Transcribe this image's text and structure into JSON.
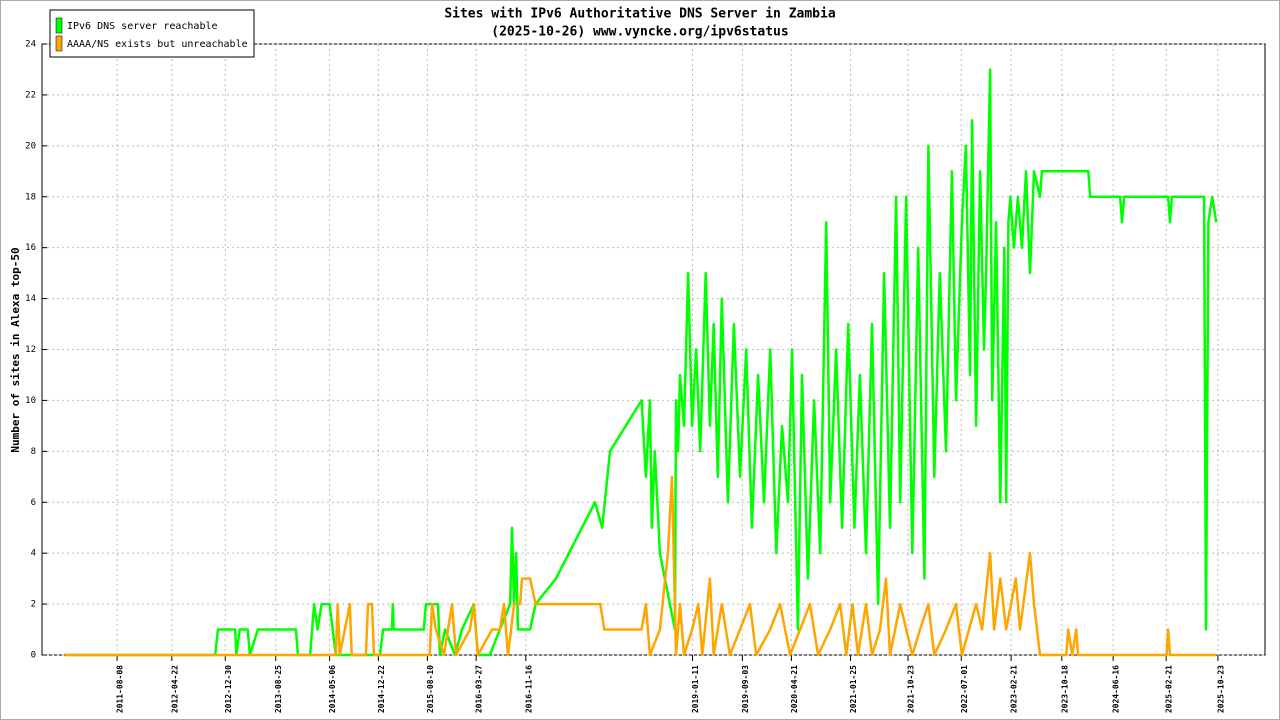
{
  "chart_data": {
    "type": "line",
    "title": "Sites with IPv6 Authoritative DNS Server in Zambia",
    "subtitle": "(2025-10-26) www.vyncke.org/ipv6status",
    "y_label": "Number of sites in Alexa top-50",
    "xlim": [
      "2010-08-19",
      "2026-06-02"
    ],
    "xticks": [
      "2011-08-08",
      "2012-04-22",
      "2012-12-30",
      "2013-08-25",
      "2014-05-06",
      "2014-12-22",
      "2015-08-10",
      "2016-03-27",
      "2016-11-16",
      "2019-01-11",
      "2019-09-03",
      "2020-04-21",
      "2021-01-25",
      "2021-10-23",
      "2022-07-01",
      "2023-02-21",
      "2023-10-18",
      "2024-06-16",
      "2025-02-21",
      "2025-10-23"
    ],
    "ylim": [
      0,
      24
    ],
    "yticks": [
      0,
      2,
      4,
      6,
      8,
      10,
      12,
      14,
      16,
      18,
      20,
      22,
      24
    ],
    "grid": true,
    "legend": "top-left",
    "series": [
      {
        "name": "IPv6 DNS server reachable",
        "color": "#00ff00",
        "x": [
          "2010-12-05",
          "2012-11-12",
          "2012-11-26",
          "2013-02-15",
          "2013-02-20",
          "2013-03-08",
          "2013-04-15",
          "2013-04-25",
          "2013-06-02",
          "2013-11-28",
          "2013-12-08",
          "2014-02-03",
          "2014-02-22",
          "2014-03-10",
          "2014-03-29",
          "2014-05-06",
          "2014-06-04",
          "2014-12-29",
          "2015-01-13",
          "2015-02-24",
          "2015-02-28",
          "2015-03-04",
          "2015-07-24",
          "2015-08-03",
          "2015-09-29",
          "2015-10-08",
          "2015-11-01",
          "2015-12-18",
          "2016-01-20",
          "2016-03-16",
          "2016-04-04",
          "2016-05-30",
          "2016-07-17",
          "2016-09-03",
          "2016-09-12",
          "2016-09-22",
          "2016-10-01",
          "2016-10-10",
          "2016-12-06",
          "2017-01-01",
          "2017-04-07",
          "2017-10-08",
          "2017-11-11",
          "2017-12-18",
          "2018-05-16",
          "2018-06-05",
          "2018-06-24",
          "2018-07-03",
          "2018-07-17",
          "2018-08-10",
          "2018-10-20",
          "2018-10-25",
          "2018-11-04",
          "2018-11-13",
          "2018-12-02",
          "2018-12-21",
          "2019-01-09",
          "2019-01-28",
          "2019-02-16",
          "2019-03-14",
          "2019-04-03",
          "2019-04-21",
          "2019-05-10",
          "2019-05-29",
          "2019-06-27",
          "2019-07-25",
          "2019-08-23",
          "2019-09-21",
          "2019-10-18",
          "2019-11-16",
          "2019-12-14",
          "2020-01-12",
          "2020-02-10",
          "2020-03-08",
          "2020-04-05",
          "2020-04-24",
          "2020-05-22",
          "2020-06-10",
          "2020-07-08",
          "2020-08-06",
          "2020-09-04",
          "2020-10-02",
          "2020-10-21",
          "2020-11-18",
          "2020-12-16",
          "2021-01-14",
          "2021-02-12",
          "2021-03-10",
          "2021-04-08",
          "2021-05-06",
          "2021-06-04",
          "2021-07-02",
          "2021-07-30",
          "2021-08-28",
          "2021-09-16",
          "2021-10-14",
          "2021-11-12",
          "2021-12-10",
          "2022-01-08",
          "2022-01-27",
          "2022-02-24",
          "2022-03-22",
          "2022-04-20",
          "2022-05-18",
          "2022-06-06",
          "2022-07-04",
          "2022-07-23",
          "2022-08-11",
          "2022-08-21",
          "2022-09-09",
          "2022-09-28",
          "2022-10-16",
          "2022-10-26",
          "2022-11-14",
          "2022-11-24",
          "2022-12-12",
          "2023-01-01",
          "2023-01-20",
          "2023-01-29",
          "2023-02-08",
          "2023-02-17",
          "2023-03-06",
          "2023-03-25",
          "2023-04-13",
          "2023-05-02",
          "2023-05-21",
          "2023-06-09",
          "2023-07-07",
          "2023-07-16",
          "2024-02-20",
          "2024-02-29",
          "2024-07-19",
          "2024-07-28",
          "2024-08-07",
          "2025-03-02",
          "2025-03-11",
          "2025-03-20",
          "2025-08-19",
          "2025-08-28",
          "2025-09-08",
          "2025-09-26",
          "2025-10-15"
        ],
        "values": [
          0,
          0,
          1,
          1,
          0,
          1,
          1,
          0,
          1,
          1,
          0,
          0,
          2,
          1,
          2,
          2,
          0,
          0,
          1,
          1,
          2,
          1,
          1,
          2,
          2,
          0,
          1,
          0,
          1,
          2,
          0,
          0,
          1,
          2,
          5,
          2,
          4,
          1,
          1,
          2,
          3,
          6,
          5,
          8,
          10,
          7,
          10,
          5,
          8,
          4,
          1,
          10,
          8,
          11,
          9,
          15,
          9,
          12,
          8,
          15,
          9,
          13,
          7,
          14,
          6,
          13,
          7,
          12,
          5,
          11,
          6,
          12,
          4,
          9,
          6,
          12,
          1,
          11,
          3,
          10,
          4,
          17,
          6,
          12,
          5,
          13,
          5,
          11,
          4,
          13,
          2,
          15,
          5,
          18,
          6,
          18,
          4,
          16,
          3,
          20,
          7,
          15,
          8,
          19,
          10,
          17,
          20,
          11,
          21,
          9,
          19,
          12,
          15,
          23,
          10,
          17,
          6,
          16,
          6,
          17,
          18,
          16,
          18,
          16,
          19,
          15,
          19,
          18,
          19,
          19,
          18,
          18,
          17,
          18,
          18,
          17,
          18,
          18,
          1,
          17,
          18,
          17
        ]
      },
      {
        "name": "AAAA/NS exists but unreachable",
        "color": "#ffa500",
        "x": [
          "2010-12-05",
          "2014-06-04",
          "2014-06-13",
          "2014-06-23",
          "2014-08-09",
          "2014-08-18",
          "2014-10-24",
          "2014-11-03",
          "2014-11-22",
          "2014-12-01",
          "2015-08-21",
          "2015-09-01",
          "2015-09-19",
          "2015-10-27",
          "2015-12-04",
          "2015-12-23",
          "2016-02-27",
          "2016-03-16",
          "2016-04-04",
          "2016-06-10",
          "2016-07-17",
          "2016-08-05",
          "2016-08-24",
          "2016-09-22",
          "2016-10-20",
          "2016-10-29",
          "2016-12-06",
          "2017-01-01",
          "2017-11-02",
          "2017-11-21",
          "2018-05-16",
          "2018-06-05",
          "2018-06-24",
          "2018-08-10",
          "2018-09-17",
          "2018-10-06",
          "2018-10-25",
          "2018-11-13",
          "2018-12-02",
          "2019-01-09",
          "2019-02-07",
          "2019-02-26",
          "2019-04-03",
          "2019-04-21",
          "2019-05-29",
          "2019-07-06",
          "2019-08-23",
          "2019-10-09",
          "2019-11-07",
          "2020-01-12",
          "2020-02-28",
          "2020-04-15",
          "2020-06-01",
          "2020-07-18",
          "2020-08-25",
          "2020-10-21",
          "2020-12-07",
          "2021-01-05",
          "2021-02-03",
          "2021-03-01",
          "2021-04-08",
          "2021-05-06",
          "2021-06-13",
          "2021-07-11",
          "2021-07-30",
          "2021-09-16",
          "2021-11-12",
          "2021-12-19",
          "2022-01-27",
          "2022-02-24",
          "2022-04-20",
          "2022-06-06",
          "2022-07-04",
          "2022-09-09",
          "2022-10-07",
          "2022-11-14",
          "2022-12-03",
          "2023-01-01",
          "2023-01-29",
          "2023-03-15",
          "2023-04-04",
          "2023-05-21",
          "2023-06-09",
          "2023-07-07",
          "2023-11-08",
          "2023-11-17",
          "2023-12-06",
          "2023-12-25",
          "2024-01-03",
          "2025-02-23",
          "2025-03-02",
          "2025-03-11",
          "2025-10-15"
        ],
        "values": [
          0,
          0,
          2,
          0,
          2,
          0,
          0,
          2,
          2,
          0,
          0,
          2,
          1,
          0,
          2,
          0,
          1,
          2,
          0,
          1,
          1,
          2,
          0,
          2,
          2,
          3,
          3,
          2,
          2,
          1,
          1,
          2,
          0,
          1,
          4,
          7,
          0,
          2,
          0,
          1,
          2,
          0,
          3,
          0,
          2,
          0,
          1,
          2,
          0,
          1,
          2,
          0,
          1,
          2,
          0,
          1,
          2,
          0,
          2,
          0,
          2,
          0,
          1,
          3,
          0,
          2,
          0,
          1,
          2,
          0,
          1,
          2,
          0,
          2,
          1,
          4,
          1,
          3,
          1,
          3,
          1,
          4,
          2,
          0,
          0,
          1,
          0,
          1,
          0,
          0,
          1,
          0,
          0
        ]
      }
    ]
  }
}
